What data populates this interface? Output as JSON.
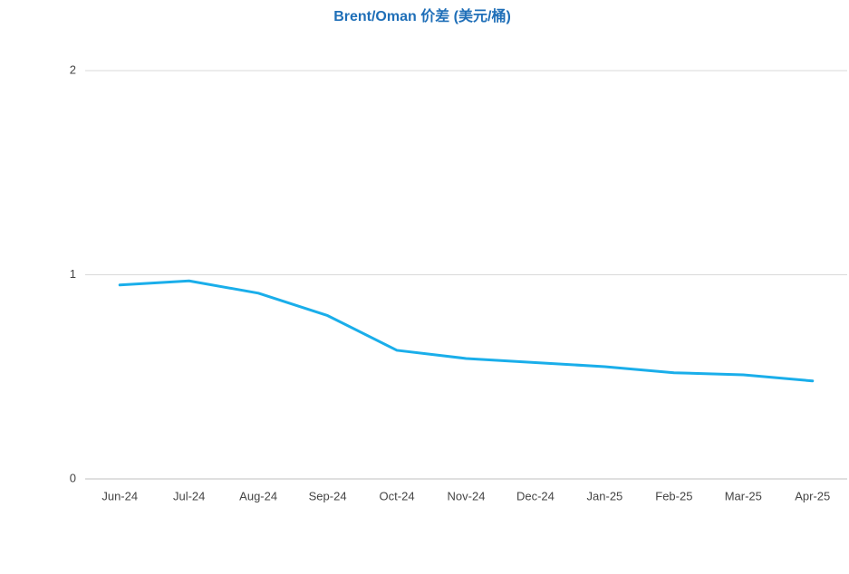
{
  "chart_data": {
    "type": "line",
    "title": "Brent/Oman 价差 (美元/桶)",
    "categories": [
      "Jun-24",
      "Jul-24",
      "Aug-24",
      "Sep-24",
      "Oct-24",
      "Nov-24",
      "Dec-24",
      "Jan-25",
      "Feb-25",
      "Mar-25",
      "Apr-25"
    ],
    "series": [
      {
        "name": "Brent/Oman",
        "color": "#1aaeea",
        "values": [
          0.95,
          0.97,
          0.91,
          0.8,
          0.63,
          0.59,
          0.57,
          0.55,
          0.52,
          0.51,
          0.48
        ]
      }
    ],
    "ylim": [
      0,
      2
    ],
    "yticks": [
      0,
      1,
      2
    ],
    "grid": true
  }
}
